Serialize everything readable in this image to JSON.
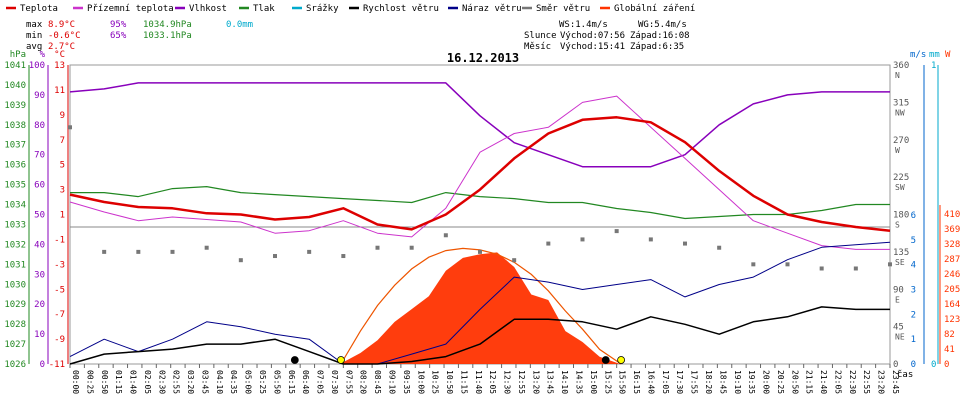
{
  "legend": [
    {
      "label": "Teplota",
      "color": "#dd0000"
    },
    {
      "label": "Přízemní teplota",
      "color": "#cc33cc"
    },
    {
      "label": "Vlhkost",
      "color": "#8800bb"
    },
    {
      "label": "Tlak",
      "color": "#228822"
    },
    {
      "label": "Srážky",
      "color": "#00aacc"
    },
    {
      "label": "Rychlost větru",
      "color": "#000000"
    },
    {
      "label": "Náraz větru",
      "color": "#000088"
    },
    {
      "label": "Směr větru",
      "color": "#777777"
    },
    {
      "label": "Globální záření",
      "color": "#ff3300"
    }
  ],
  "stats": {
    "max": {
      "label": "max",
      "temp": "8.9°C",
      "hum": "95%",
      "press": "1034.9hPa",
      "rain": "0.0mm"
    },
    "min": {
      "label": "min",
      "temp": "-0.6°C",
      "hum": "65%",
      "press": "1033.1hPa"
    },
    "avg": {
      "label": "avg",
      "temp": "2.7°C"
    }
  },
  "info": {
    "ws": "WS:1.4m/s",
    "wg": "WG:5.4m/s",
    "sun_label": "Slunce",
    "sun_rise": "Východ:07:56",
    "sun_set": "Západ:16:08",
    "moon_label": "Měsíc",
    "moon_rise": "Východ:15:41",
    "moon_set": "Západ:6:35"
  },
  "date": "16.12.2013",
  "colors": {
    "temp": "#dd0000",
    "ground": "#cc33cc",
    "hum": "#8800bb",
    "press": "#228822",
    "rain": "#00aacc",
    "wind": "#000000",
    "gust": "#000088",
    "dir": "#777777",
    "solar": "#ff3300",
    "theory": "#ee5500"
  },
  "chart_data": {
    "type": "line",
    "title": "16.12.2013",
    "x_unit_label": "čas",
    "axes": {
      "pressure": {
        "unit": "hPa",
        "ticks": [
          "1041",
          "1040",
          "1039",
          "1038",
          "1037",
          "1036",
          "1035",
          "1034",
          "1033",
          "1032",
          "1031",
          "1030",
          "1029",
          "1028",
          "1027",
          "1026"
        ]
      },
      "humidity": {
        "unit": "%",
        "ticks": [
          "100",
          "90",
          "80",
          "70",
          "60",
          "50",
          "40",
          "30",
          "20",
          "10",
          "0"
        ]
      },
      "temperature": {
        "unit": "°C",
        "ticks": [
          "13",
          "11",
          "9",
          "7",
          "5",
          "3",
          "1",
          "-1",
          "-3",
          "-5",
          "-7",
          "-9",
          "-11"
        ]
      },
      "direction": {
        "unit": "",
        "ticks": [
          "360",
          "315",
          "270",
          "225",
          "180",
          "135",
          "90",
          "45",
          "0"
        ],
        "names": [
          "N",
          "NW",
          "W",
          "SW",
          "S",
          "SE",
          "E",
          "NE",
          ""
        ]
      },
      "wind": {
        "unit": "m/s",
        "ticks": [
          "6",
          "5",
          "4",
          "3",
          "2",
          "1",
          "0"
        ]
      },
      "rain": {
        "unit": "mm",
        "ticks": [
          "1",
          "0"
        ]
      },
      "solar": {
        "unit": "W",
        "ticks": [
          "410",
          "369",
          "328",
          "287",
          "246",
          "205",
          "164",
          "123",
          "82",
          "41",
          "0"
        ]
      }
    },
    "x_ticks": [
      "00:00",
      "00:25",
      "00:50",
      "01:15",
      "01:40",
      "02:05",
      "02:30",
      "02:55",
      "03:20",
      "03:45",
      "04:10",
      "04:35",
      "05:00",
      "05:25",
      "05:50",
      "06:15",
      "06:40",
      "07:05",
      "07:30",
      "07:55",
      "08:20",
      "08:45",
      "09:10",
      "09:35",
      "10:00",
      "10:25",
      "10:50",
      "11:15",
      "11:40",
      "12:05",
      "12:30",
      "12:55",
      "13:20",
      "13:45",
      "14:10",
      "14:35",
      "15:00",
      "15:25",
      "15:50",
      "16:15",
      "16:40",
      "17:05",
      "17:30",
      "17:55",
      "18:20",
      "18:45",
      "19:10",
      "19:35",
      "20:00",
      "20:25",
      "20:50",
      "21:15",
      "21:40",
      "22:05",
      "22:30",
      "22:55",
      "23:20",
      "23:45"
    ],
    "series": [
      {
        "name": "Teplota",
        "axis": "temperature",
        "x": [
          0,
          1,
          2,
          3,
          4,
          5,
          6,
          7,
          8,
          9,
          10,
          11,
          12,
          13,
          14,
          15,
          16,
          17,
          18,
          19,
          20,
          21,
          22,
          23,
          24
        ],
        "values": [
          2.6,
          2.0,
          1.6,
          1.5,
          1.1,
          1.0,
          0.6,
          0.8,
          1.5,
          0.2,
          -0.2,
          1.0,
          3.0,
          5.5,
          7.5,
          8.6,
          8.8,
          8.4,
          6.8,
          4.5,
          2.5,
          1.0,
          0.4,
          0.0,
          -0.3
        ]
      },
      {
        "name": "Přízemní teplota",
        "axis": "temperature",
        "x": [
          0,
          1,
          2,
          3,
          4,
          5,
          6,
          7,
          8,
          9,
          10,
          11,
          12,
          13,
          14,
          15,
          16,
          17,
          18,
          19,
          20,
          21,
          22,
          23,
          24
        ],
        "values": [
          2.0,
          1.2,
          0.5,
          0.8,
          0.6,
          0.4,
          -0.5,
          -0.3,
          0.5,
          -0.5,
          -0.8,
          1.5,
          6.0,
          7.5,
          8.0,
          10.0,
          10.5,
          8.0,
          5.5,
          3.0,
          0.5,
          -0.5,
          -1.5,
          -1.8,
          -1.8
        ]
      },
      {
        "name": "Vlhkost",
        "axis": "humidity",
        "x": [
          0,
          1,
          2,
          3,
          4,
          5,
          6,
          7,
          8,
          9,
          10,
          11,
          12,
          13,
          14,
          15,
          16,
          17,
          18,
          19,
          20,
          21,
          22,
          23,
          24
        ],
        "values": [
          91,
          92,
          94,
          94,
          94,
          94,
          94,
          94,
          94,
          94,
          94,
          94,
          83,
          74,
          70,
          66,
          66,
          66,
          70,
          80,
          87,
          90,
          91,
          91,
          91
        ]
      },
      {
        "name": "Tlak",
        "axis": "pressure",
        "x": [
          0,
          1,
          2,
          3,
          4,
          5,
          6,
          7,
          8,
          9,
          10,
          11,
          12,
          13,
          14,
          15,
          16,
          17,
          18,
          19,
          20,
          21,
          22,
          23,
          24
        ],
        "values": [
          1034.6,
          1034.6,
          1034.4,
          1034.8,
          1034.9,
          1034.6,
          1034.5,
          1034.4,
          1034.3,
          1034.2,
          1034.1,
          1034.6,
          1034.4,
          1034.3,
          1034.1,
          1034.1,
          1033.8,
          1033.6,
          1033.3,
          1033.4,
          1033.5,
          1033.5,
          1033.7,
          1034.0,
          1034.0
        ]
      },
      {
        "name": "Rychlost větru",
        "axis": "wind",
        "x": [
          0,
          1,
          2,
          3,
          4,
          5,
          6,
          7,
          8,
          9,
          10,
          11,
          12,
          13,
          14,
          15,
          16,
          17,
          18,
          19,
          20,
          21,
          22,
          23,
          24
        ],
        "values": [
          0.0,
          0.4,
          0.5,
          0.6,
          0.8,
          0.8,
          1.0,
          0.5,
          0.0,
          0.0,
          0.1,
          0.3,
          0.8,
          1.8,
          1.8,
          1.7,
          1.4,
          1.9,
          1.6,
          1.2,
          1.7,
          1.9,
          2.3,
          2.2,
          2.2
        ]
      },
      {
        "name": "Náraz větru",
        "axis": "wind",
        "x": [
          0,
          1,
          2,
          3,
          4,
          5,
          6,
          7,
          8,
          9,
          10,
          11,
          12,
          13,
          14,
          15,
          16,
          17,
          18,
          19,
          20,
          21,
          22,
          23,
          24
        ],
        "values": [
          0.3,
          1.0,
          0.5,
          1.0,
          1.7,
          1.5,
          1.2,
          1.0,
          0.0,
          0.0,
          0.4,
          0.8,
          2.2,
          3.5,
          3.3,
          3.0,
          3.2,
          3.4,
          2.7,
          3.2,
          3.5,
          4.2,
          4.7,
          4.8,
          4.9
        ]
      },
      {
        "name": "Směr větru",
        "axis": "direction",
        "x": [
          0,
          1,
          2,
          3,
          4,
          5,
          6,
          7,
          8,
          9,
          10,
          11,
          12,
          13,
          14,
          15,
          16,
          17,
          18,
          19,
          20,
          21,
          22,
          23,
          24
        ],
        "values": [
          285,
          135,
          135,
          135,
          140,
          125,
          130,
          135,
          130,
          140,
          140,
          155,
          135,
          125,
          145,
          150,
          160,
          150,
          145,
          140,
          120,
          120,
          115,
          115,
          120
        ]
      },
      {
        "name": "Globální záření",
        "axis": "solar",
        "x": [
          7.9,
          8.5,
          9.0,
          9.5,
          10.0,
          10.5,
          11.0,
          11.5,
          12.0,
          12.5,
          13.0,
          13.5,
          14.0,
          14.5,
          15.0,
          15.5,
          16.1
        ],
        "values": [
          0,
          30,
          65,
          115,
          150,
          185,
          255,
          290,
          300,
          305,
          265,
          190,
          175,
          90,
          60,
          20,
          0
        ]
      },
      {
        "name": "Teoretické záření",
        "axis": "solar",
        "x": [
          7.93,
          8.5,
          9.0,
          9.5,
          10.0,
          10.5,
          11.0,
          11.5,
          12.0,
          12.5,
          13.0,
          13.5,
          14.0,
          14.5,
          15.0,
          15.5,
          16.13
        ],
        "values": [
          0,
          90,
          160,
          215,
          260,
          292,
          310,
          316,
          312,
          300,
          278,
          245,
          200,
          145,
          95,
          40,
          0
        ]
      }
    ]
  }
}
